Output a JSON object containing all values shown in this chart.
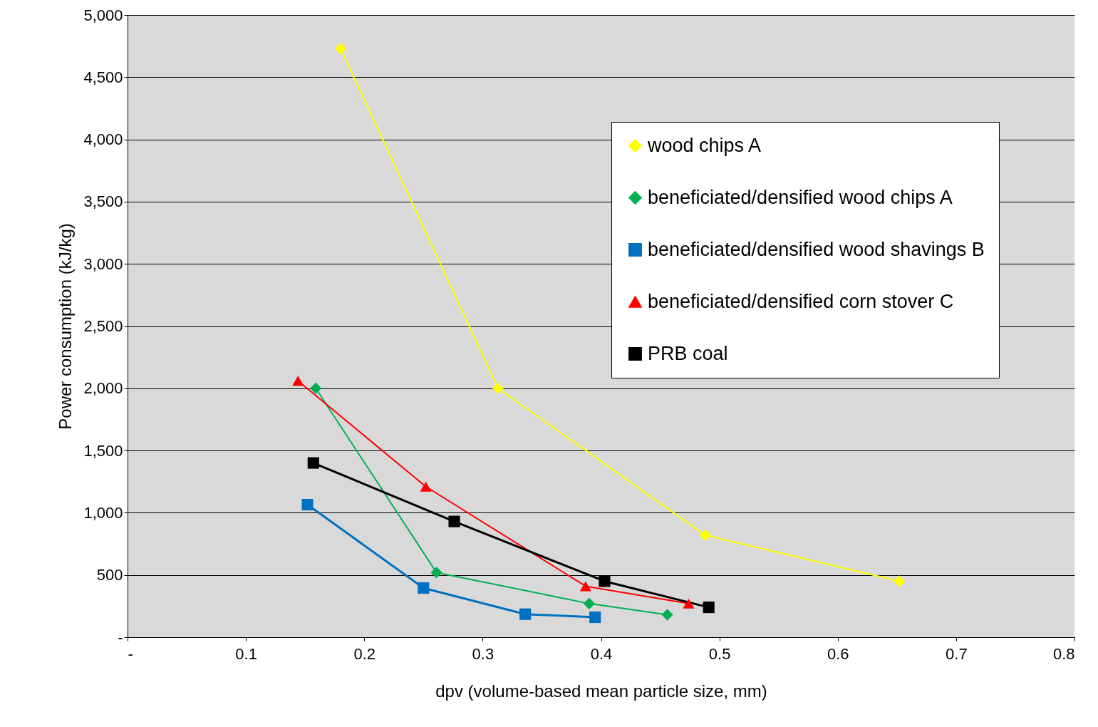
{
  "chart_data": {
    "type": "line",
    "xlabel": "dpv (volume-based mean particle size, mm)",
    "ylabel": "Power consumption (kJ/kg)",
    "xlim": [
      0,
      0.8
    ],
    "xticks": [
      {
        "value": 0,
        "label": "-"
      },
      0.1,
      0.2,
      0.3,
      0.4,
      0.5,
      0.6,
      0.7,
      0.8
    ],
    "ylim": [
      0,
      5000
    ],
    "yticks": [
      {
        "value": 0,
        "label": "-"
      },
      {
        "value": 500,
        "label": "500"
      },
      {
        "value": 1000,
        "label": "1,000"
      },
      {
        "value": 1500,
        "label": "1,500"
      },
      {
        "value": 2000,
        "label": "2,000"
      },
      {
        "value": 2500,
        "label": "2,500"
      },
      {
        "value": 3000,
        "label": "3,000"
      },
      {
        "value": 3500,
        "label": "3,500"
      },
      {
        "value": 4000,
        "label": "4,000"
      },
      {
        "value": 4500,
        "label": "4,500"
      },
      {
        "value": 5000,
        "label": "5,000"
      }
    ],
    "grid": "y",
    "legend": "top right",
    "series": [
      {
        "name": "wood chips A",
        "color": "#ffff00",
        "marker": "diamond",
        "x": [
          0.18,
          0.313,
          0.488,
          0.652
        ],
        "values": [
          4730,
          2000,
          820,
          450
        ]
      },
      {
        "name": "beneficiated/densified wood chips A",
        "color": "#00b050",
        "marker": "diamond",
        "x": [
          0.159,
          0.261,
          0.39,
          0.456
        ],
        "values": [
          2000,
          520,
          270,
          180
        ]
      },
      {
        "name": "beneficiated/densified wood shavings B",
        "color": "#0070c0",
        "marker": "square",
        "x": [
          0.152,
          0.25,
          0.336,
          0.395
        ],
        "values": [
          1065,
          395,
          185,
          160
        ]
      },
      {
        "name": "beneficiated/densified corn stover C",
        "color": "#ff0000",
        "marker": "triangle",
        "x": [
          0.144,
          0.252,
          0.387,
          0.474
        ],
        "values": [
          2060,
          1210,
          410,
          270
        ]
      },
      {
        "name": "PRB coal",
        "color": "#000000",
        "marker": "square",
        "x": [
          0.157,
          0.276,
          0.403,
          0.491
        ],
        "values": [
          1400,
          930,
          450,
          240
        ]
      }
    ]
  }
}
